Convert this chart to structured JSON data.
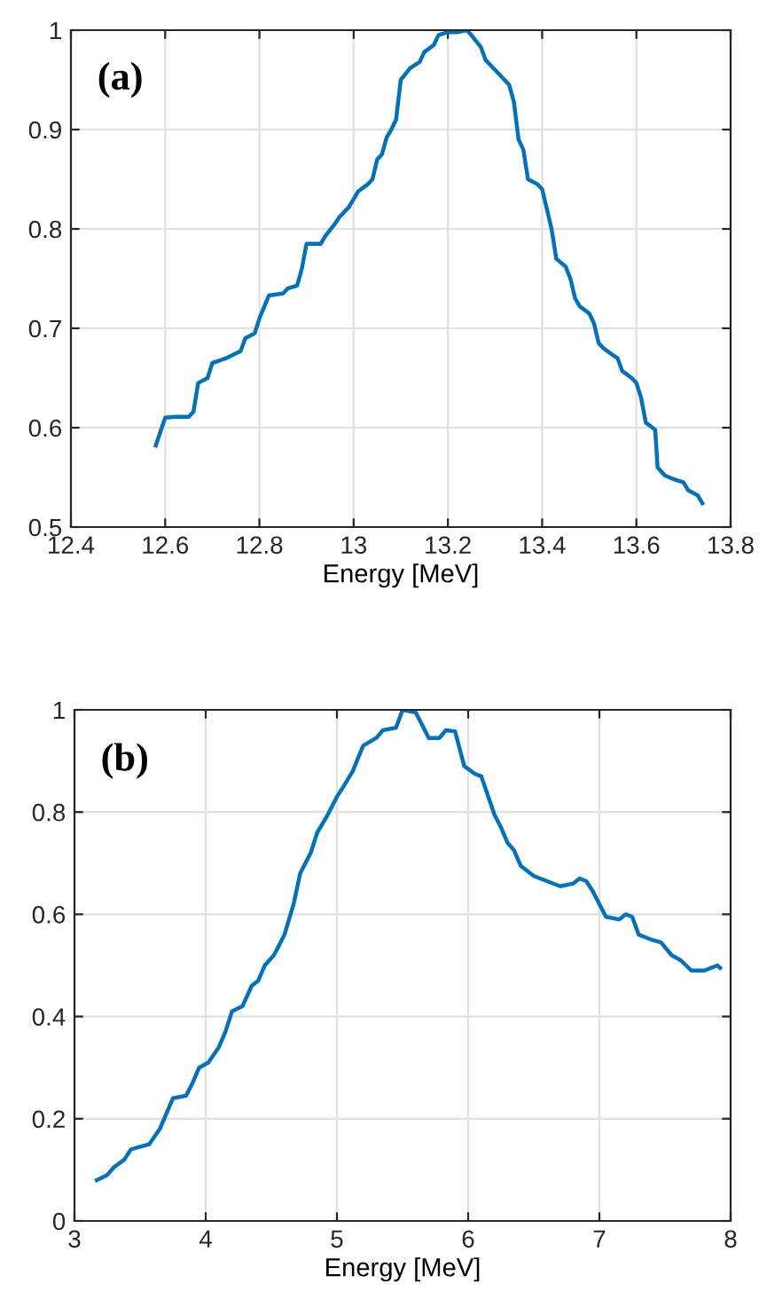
{
  "chart_data": [
    {
      "type": "line",
      "xlabel": "Energy [MeV]",
      "annotations": [
        "(a)"
      ],
      "xlim": [
        12.4,
        13.8
      ],
      "ylim": [
        0.5,
        1
      ],
      "xticks": [
        12.4,
        12.6,
        12.8,
        13,
        13.2,
        13.4,
        13.6,
        13.8
      ],
      "yticks": [
        0.5,
        0.6,
        0.7,
        0.8,
        0.9,
        1
      ],
      "grid": true,
      "series": [
        {
          "color": "#0072bd",
          "x": [
            12.58,
            12.6,
            12.62,
            12.65,
            12.66,
            12.67,
            12.69,
            12.7,
            12.73,
            12.76,
            12.77,
            12.79,
            12.8,
            12.82,
            12.85,
            12.86,
            12.88,
            12.89,
            12.9,
            12.93,
            12.94,
            12.96,
            12.97,
            12.99,
            13.01,
            13.03,
            13.04,
            13.05,
            13.06,
            13.07,
            13.08,
            13.09,
            13.1,
            13.12,
            13.14,
            13.15,
            13.17,
            13.18,
            13.2,
            13.22,
            13.24,
            13.25,
            13.27,
            13.28,
            13.3,
            13.32,
            13.33,
            13.34,
            13.35,
            13.36,
            13.37,
            13.39,
            13.4,
            13.41,
            13.42,
            13.43,
            13.45,
            13.46,
            13.47,
            13.48,
            13.5,
            13.51,
            13.52,
            13.53,
            13.55,
            13.56,
            13.57,
            13.59,
            13.6,
            13.61,
            13.62,
            13.64,
            13.645,
            13.66,
            13.68,
            13.7,
            13.71,
            13.73,
            13.74
          ],
          "values": [
            0.582,
            0.61,
            0.611,
            0.611,
            0.616,
            0.645,
            0.65,
            0.665,
            0.67,
            0.677,
            0.69,
            0.695,
            0.71,
            0.733,
            0.735,
            0.74,
            0.743,
            0.76,
            0.785,
            0.785,
            0.793,
            0.805,
            0.812,
            0.822,
            0.838,
            0.845,
            0.85,
            0.87,
            0.875,
            0.892,
            0.9,
            0.91,
            0.95,
            0.962,
            0.968,
            0.978,
            0.985,
            0.995,
            0.998,
            0.998,
            1.0,
            0.995,
            0.983,
            0.97,
            0.96,
            0.95,
            0.945,
            0.928,
            0.89,
            0.88,
            0.85,
            0.845,
            0.84,
            0.82,
            0.8,
            0.77,
            0.762,
            0.75,
            0.73,
            0.722,
            0.715,
            0.705,
            0.685,
            0.68,
            0.673,
            0.67,
            0.657,
            0.65,
            0.645,
            0.63,
            0.605,
            0.598,
            0.56,
            0.552,
            0.548,
            0.545,
            0.537,
            0.532,
            0.524
          ]
        }
      ]
    },
    {
      "type": "line",
      "xlabel": "Energy [MeV]",
      "annotations": [
        "(b)"
      ],
      "xlim": [
        3,
        8
      ],
      "ylim": [
        0,
        1
      ],
      "xticks": [
        3,
        4,
        5,
        6,
        7,
        8
      ],
      "yticks": [
        0,
        0.2,
        0.4,
        0.6,
        0.8,
        1
      ],
      "grid": true,
      "series": [
        {
          "color": "#0072bd",
          "x": [
            3.17,
            3.25,
            3.3,
            3.38,
            3.43,
            3.5,
            3.57,
            3.65,
            3.7,
            3.75,
            3.85,
            3.9,
            3.95,
            4.02,
            4.1,
            4.15,
            4.2,
            4.28,
            4.35,
            4.4,
            4.45,
            4.52,
            4.6,
            4.67,
            4.72,
            4.8,
            4.85,
            4.92,
            5.0,
            5.05,
            5.12,
            5.2,
            5.3,
            5.35,
            5.45,
            5.5,
            5.6,
            5.65,
            5.7,
            5.78,
            5.83,
            5.9,
            5.97,
            6.05,
            6.1,
            6.2,
            6.25,
            6.3,
            6.35,
            6.4,
            6.5,
            6.6,
            6.7,
            6.8,
            6.85,
            6.9,
            6.95,
            7.05,
            7.15,
            7.2,
            7.25,
            7.3,
            7.4,
            7.47,
            7.55,
            7.62,
            7.7,
            7.8,
            7.9,
            7.92
          ],
          "values": [
            0.08,
            0.09,
            0.105,
            0.12,
            0.14,
            0.145,
            0.15,
            0.18,
            0.21,
            0.24,
            0.245,
            0.27,
            0.3,
            0.31,
            0.34,
            0.37,
            0.41,
            0.42,
            0.46,
            0.47,
            0.5,
            0.52,
            0.56,
            0.62,
            0.68,
            0.72,
            0.76,
            0.79,
            0.83,
            0.85,
            0.88,
            0.93,
            0.945,
            0.96,
            0.965,
            1.0,
            0.995,
            0.97,
            0.945,
            0.945,
            0.96,
            0.958,
            0.89,
            0.875,
            0.87,
            0.795,
            0.77,
            0.74,
            0.725,
            0.695,
            0.675,
            0.665,
            0.655,
            0.66,
            0.67,
            0.665,
            0.645,
            0.595,
            0.59,
            0.6,
            0.595,
            0.56,
            0.55,
            0.545,
            0.52,
            0.51,
            0.49,
            0.49,
            0.5,
            0.495
          ]
        }
      ]
    }
  ]
}
